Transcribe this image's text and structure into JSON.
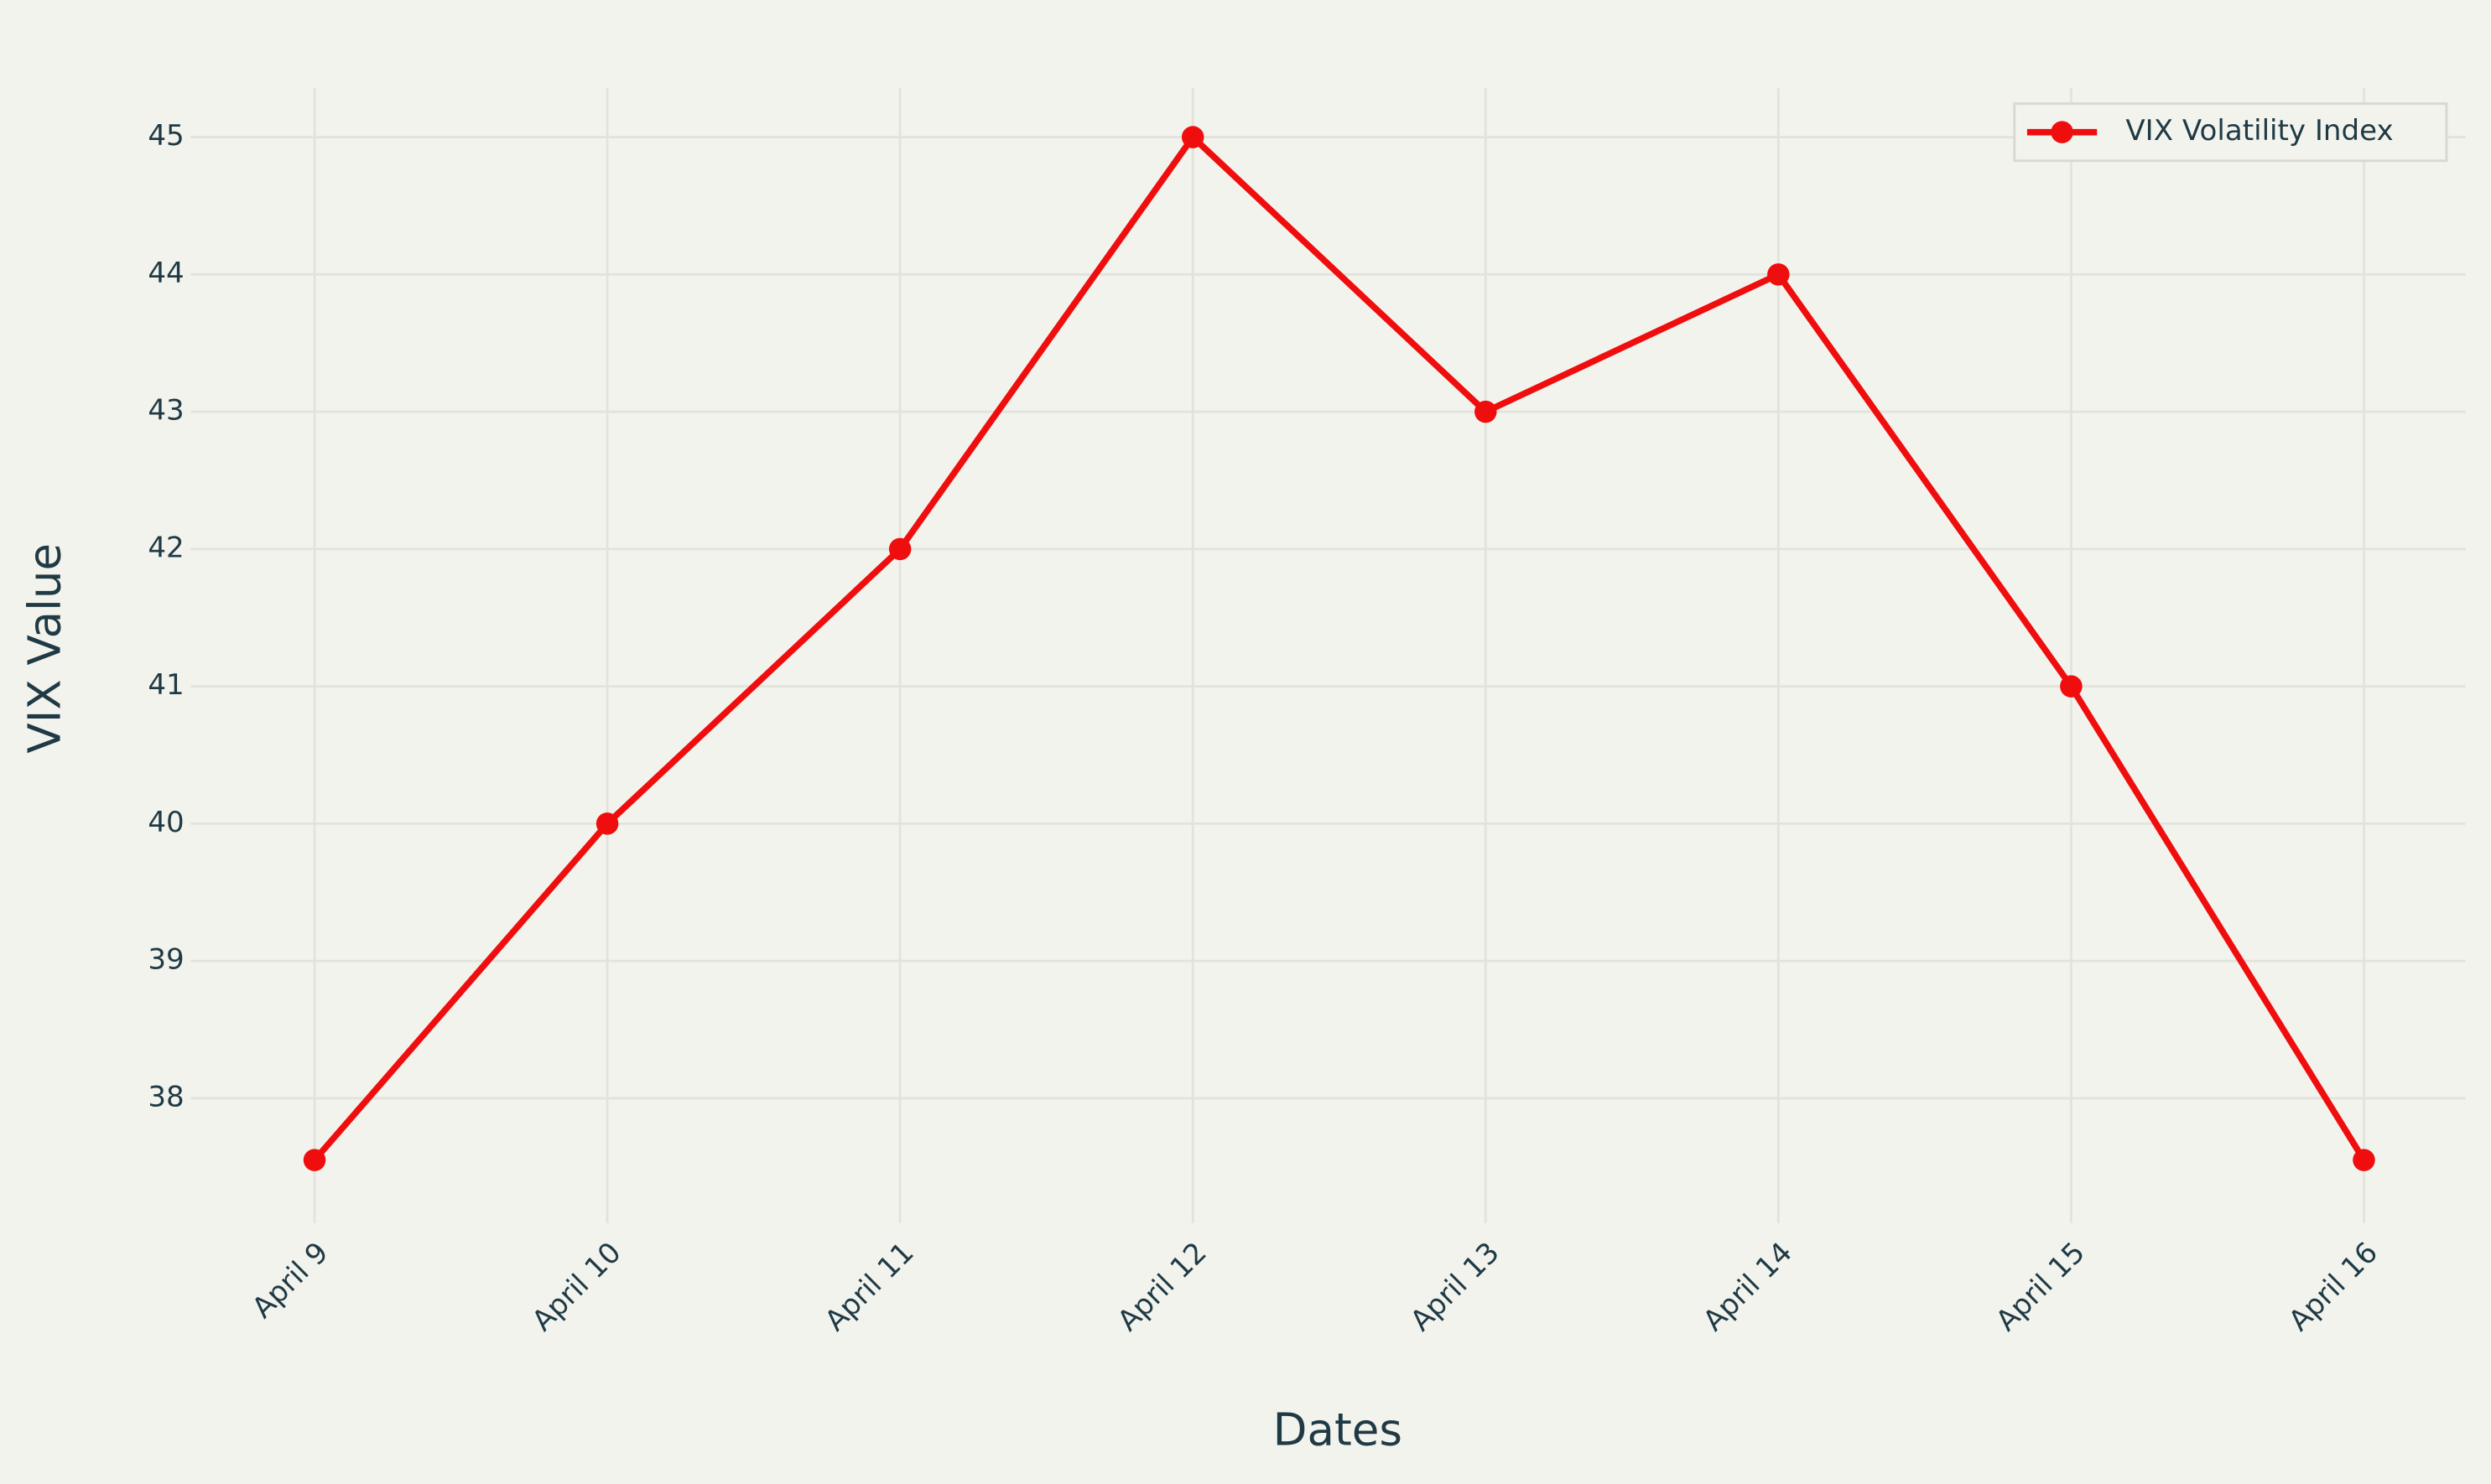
{
  "chart_data": {
    "type": "line",
    "x_label": "Dates",
    "y_label": "VIX Value",
    "categories": [
      "April 9",
      "April 10",
      "April 11",
      "April 12",
      "April 13",
      "April 14",
      "April 15",
      "April 16"
    ],
    "series": [
      {
        "name": "VIX Volatility Index",
        "color": "#f00d0d",
        "values": [
          37.55,
          40,
          42,
          45,
          43,
          44,
          41,
          37.55
        ]
      }
    ],
    "ylim": [
      37.09,
      45.36
    ],
    "yticks": [
      38,
      39,
      40,
      41,
      42,
      43,
      44,
      45
    ],
    "grid": true,
    "legend": "top-right"
  }
}
